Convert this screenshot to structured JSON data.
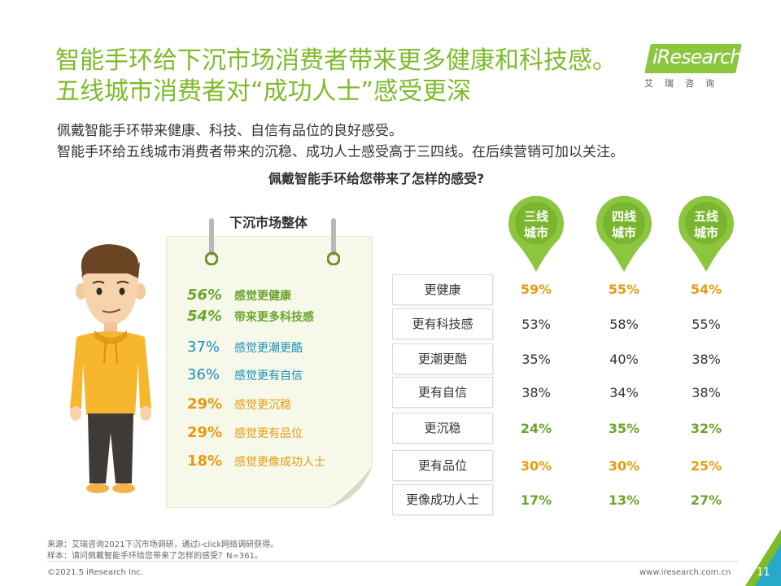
{
  "title": {
    "line1": "智能手环给下沉市场消费者带来更多健康和科技感。",
    "line2": "五线城市消费者对“成功人士”感受更深"
  },
  "subtitle": {
    "line1": "佩戴智能手环带来健康、科技、自信有品位的良好感受。",
    "line2": "智能手环给五线城市消费者带来的沉稳、成功人士感受高于三四线。在后续营销可加以关注。"
  },
  "logo": {
    "name": "iResearch",
    "cn": "艾瑞咨询"
  },
  "question": "佩戴智能手环给您带来了怎样的感受?",
  "overall": {
    "title": "下沉市场整体",
    "items": [
      {
        "pct": "56%",
        "label": "感觉更健康"
      },
      {
        "pct": "54%",
        "label": "带来更多科技感"
      },
      {
        "pct": "37%",
        "label": "感觉更潮更酷"
      },
      {
        "pct": "36%",
        "label": "感觉更有自信"
      },
      {
        "pct": "29%",
        "label": "感觉更沉稳"
      },
      {
        "pct": "29%",
        "label": "感觉更有品位"
      },
      {
        "pct": "18%",
        "label": "感觉更像成功人士"
      }
    ]
  },
  "cities": [
    {
      "line1": "三线",
      "line2": "城市"
    },
    {
      "line1": "四线",
      "line2": "城市"
    },
    {
      "line1": "五线",
      "line2": "城市"
    }
  ],
  "table": [
    {
      "label": "更健康",
      "values": [
        "59%",
        "55%",
        "54%"
      ]
    },
    {
      "label": "更有科技感",
      "values": [
        "53%",
        "58%",
        "55%"
      ]
    },
    {
      "label": "更潮更酷",
      "values": [
        "35%",
        "40%",
        "38%"
      ]
    },
    {
      "label": "更有自信",
      "values": [
        "38%",
        "34%",
        "38%"
      ]
    },
    {
      "label": "更沉稳",
      "values": [
        "24%",
        "35%",
        "32%"
      ]
    },
    {
      "label": "更有品位",
      "values": [
        "30%",
        "30%",
        "25%"
      ]
    },
    {
      "label": "更像成功人士",
      "values": [
        "17%",
        "13%",
        "27%"
      ]
    }
  ],
  "colors": {
    "accent": "#7dbb2a",
    "highlight_orange": "#e79a11",
    "highlight_green": "#6aa52a",
    "teal": "#1a90b8"
  },
  "footnotes": {
    "source": "来源：艾瑞咨询2021下沉市场调研，通过i-click网络调研获得。",
    "sample": "样本：请问佩戴智能手环给您带来了怎样的感受？N=361。"
  },
  "footer": {
    "copyright": "©2021.5 iResearch Inc.",
    "site": "www.iresearch.com.cn",
    "page": "11"
  }
}
